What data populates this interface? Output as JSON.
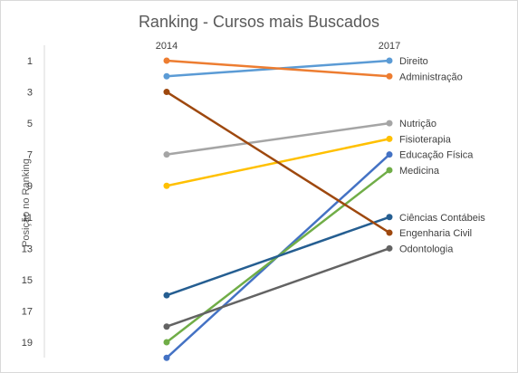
{
  "chart_data": {
    "type": "line",
    "title": "Ranking - Cursos mais Buscados",
    "xlabel": "",
    "ylabel": "Posição no Ranking",
    "categories": [
      "2014",
      "2017"
    ],
    "y_axis": {
      "min": 0,
      "max": 20,
      "inverted": true,
      "ticks": [
        1,
        3,
        5,
        7,
        9,
        11,
        13,
        15,
        17,
        19
      ]
    },
    "grid": false,
    "legend": "none",
    "series": [
      {
        "name": "Direito",
        "values": [
          2,
          1
        ],
        "color": "#5b9bd5"
      },
      {
        "name": "Administração",
        "values": [
          1,
          2
        ],
        "color": "#ed7d31"
      },
      {
        "name": "Nutrição",
        "values": [
          7,
          5
        ],
        "color": "#a5a5a5"
      },
      {
        "name": "Fisioterapia",
        "values": [
          9,
          6
        ],
        "color": "#ffc000"
      },
      {
        "name": "Educação Física",
        "values": [
          20,
          7
        ],
        "color": "#4472c4"
      },
      {
        "name": "Medicina",
        "values": [
          19,
          8
        ],
        "color": "#70ad47"
      },
      {
        "name": "Ciências Contábeis",
        "values": [
          16,
          11
        ],
        "color": "#255e91"
      },
      {
        "name": "Engenharia Civil",
        "values": [
          3,
          12
        ],
        "color": "#9e480e"
      },
      {
        "name": "Odontologia",
        "values": [
          18,
          13
        ],
        "color": "#636363"
      }
    ]
  }
}
